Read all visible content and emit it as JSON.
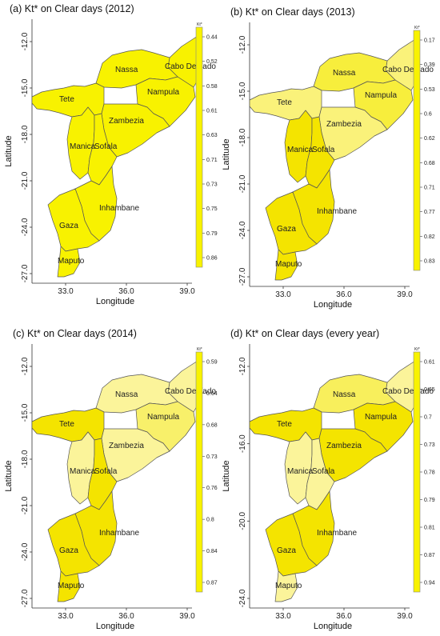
{
  "chart_data": [
    {
      "type": "choropleth",
      "title": "(a) Kt* on Clear days (2012)",
      "xlabel": "Longitude",
      "ylabel": "Latitude",
      "x_ticks": [
        "33.0",
        "36.0",
        "39.0"
      ],
      "y_ticks": [
        "-12.0",
        "-15.0",
        "-18.0",
        "-21.0",
        "-24.0",
        "-27.0"
      ],
      "legend_title": "Kt*",
      "legend_values": [
        "0.44",
        "0.52",
        "0.58",
        "0.61",
        "0.63",
        "0.71",
        "0.73",
        "0.75",
        "0.79",
        "0.86"
      ],
      "regions": [
        {
          "name": "Cabo Delgado",
          "color": "#f8f200"
        },
        {
          "name": "Nassa",
          "color": "#f8f200"
        },
        {
          "name": "Nampula",
          "color": "#f8f200"
        },
        {
          "name": "Tete",
          "color": "#f8f200"
        },
        {
          "name": "Zambezia",
          "color": "#f8f200"
        },
        {
          "name": "Manica",
          "color": "#f8f200"
        },
        {
          "name": "Sofala",
          "color": "#f8f200"
        },
        {
          "name": "Inhambane",
          "color": "#f8f200"
        },
        {
          "name": "Gaza",
          "color": "#f8f200"
        },
        {
          "name": "Maputo",
          "color": "#f8f200"
        }
      ]
    },
    {
      "type": "choropleth",
      "title": "(b) Kt* on Clear days (2013)",
      "xlabel": "Longitude",
      "ylabel": "Latitude",
      "x_ticks": [
        "33.0",
        "36.0",
        "39.0"
      ],
      "y_ticks": [
        "-12.0",
        "-15.0",
        "-18.0",
        "-21.0",
        "-24.0",
        "-27.0"
      ],
      "legend_title": "Kt*",
      "legend_values": [
        "0.17",
        "0.39",
        "0.53",
        "0.6",
        "0.62",
        "0.68",
        "0.71",
        "0.77",
        "0.82",
        "0.83"
      ],
      "regions": [
        {
          "name": "Cabo Delgado",
          "color": "#faf27a"
        },
        {
          "name": "Nassa",
          "color": "#f7ee3c"
        },
        {
          "name": "Nampula",
          "color": "#f7ee3c"
        },
        {
          "name": "Tete",
          "color": "#faf27a"
        },
        {
          "name": "Zambezia",
          "color": "#faf27a"
        },
        {
          "name": "Manica",
          "color": "#f4e400"
        },
        {
          "name": "Sofala",
          "color": "#f4e400"
        },
        {
          "name": "Inhambane",
          "color": "#f4e400"
        },
        {
          "name": "Gaza",
          "color": "#f4e400"
        },
        {
          "name": "Maputo",
          "color": "#f4e400"
        }
      ]
    },
    {
      "type": "choropleth",
      "title": "(c) Kt* on Clear days (2014)",
      "xlabel": "Longitude",
      "ylabel": "Latitude",
      "x_ticks": [
        "33.0",
        "36.0",
        "39.0"
      ],
      "y_ticks": [
        "-12.0",
        "-15.0",
        "-18.0",
        "-21.0",
        "-24.0",
        "-27.0"
      ],
      "legend_title": "Kt*",
      "legend_values": [
        "0.59",
        "0.64",
        "0.68",
        "0.73",
        "0.76",
        "0.8",
        "0.84",
        "0.87"
      ],
      "regions": [
        {
          "name": "Cabo Delgado",
          "color": "#fbf49a"
        },
        {
          "name": "Nassa",
          "color": "#fbf49a"
        },
        {
          "name": "Nampula",
          "color": "#f8f06a"
        },
        {
          "name": "Tete",
          "color": "#f4e400"
        },
        {
          "name": "Zambezia",
          "color": "#fbf49a"
        },
        {
          "name": "Manica",
          "color": "#fbf49a"
        },
        {
          "name": "Sofala",
          "color": "#f4e400"
        },
        {
          "name": "Inhambane",
          "color": "#f4e400"
        },
        {
          "name": "Gaza",
          "color": "#f4e400"
        },
        {
          "name": "Maputo",
          "color": "#f4e400"
        }
      ]
    },
    {
      "type": "choropleth",
      "title": "(d) Kt* on Clear days (every year)",
      "xlabel": "Longitude",
      "ylabel": "Latitude",
      "x_ticks": [
        "33.0",
        "36.0",
        "39.0"
      ],
      "y_ticks": [
        "-12.0",
        "-16.0",
        "-20.0",
        "-24.0"
      ],
      "legend_title": "Kt*",
      "legend_values": [
        "0.61",
        "0.65",
        "0.7",
        "0.73",
        "0.78",
        "0.79",
        "0.81",
        "0.87",
        "0.94"
      ],
      "regions": [
        {
          "name": "Cabo Delgado",
          "color": "#fbf49a"
        },
        {
          "name": "Nassa",
          "color": "#f8ef5c"
        },
        {
          "name": "Nampula",
          "color": "#f4e400"
        },
        {
          "name": "Tete",
          "color": "#f4e400"
        },
        {
          "name": "Zambezia",
          "color": "#f4e400"
        },
        {
          "name": "Manica",
          "color": "#fbf49a"
        },
        {
          "name": "Sofala",
          "color": "#fbf49a"
        },
        {
          "name": "Inhambane",
          "color": "#f4e400"
        },
        {
          "name": "Gaza",
          "color": "#f4e400"
        },
        {
          "name": "Maputo",
          "color": "#fbf49a"
        }
      ]
    }
  ],
  "colors": {
    "border": "#555555",
    "axis": "#333333",
    "coast": "#222222"
  }
}
